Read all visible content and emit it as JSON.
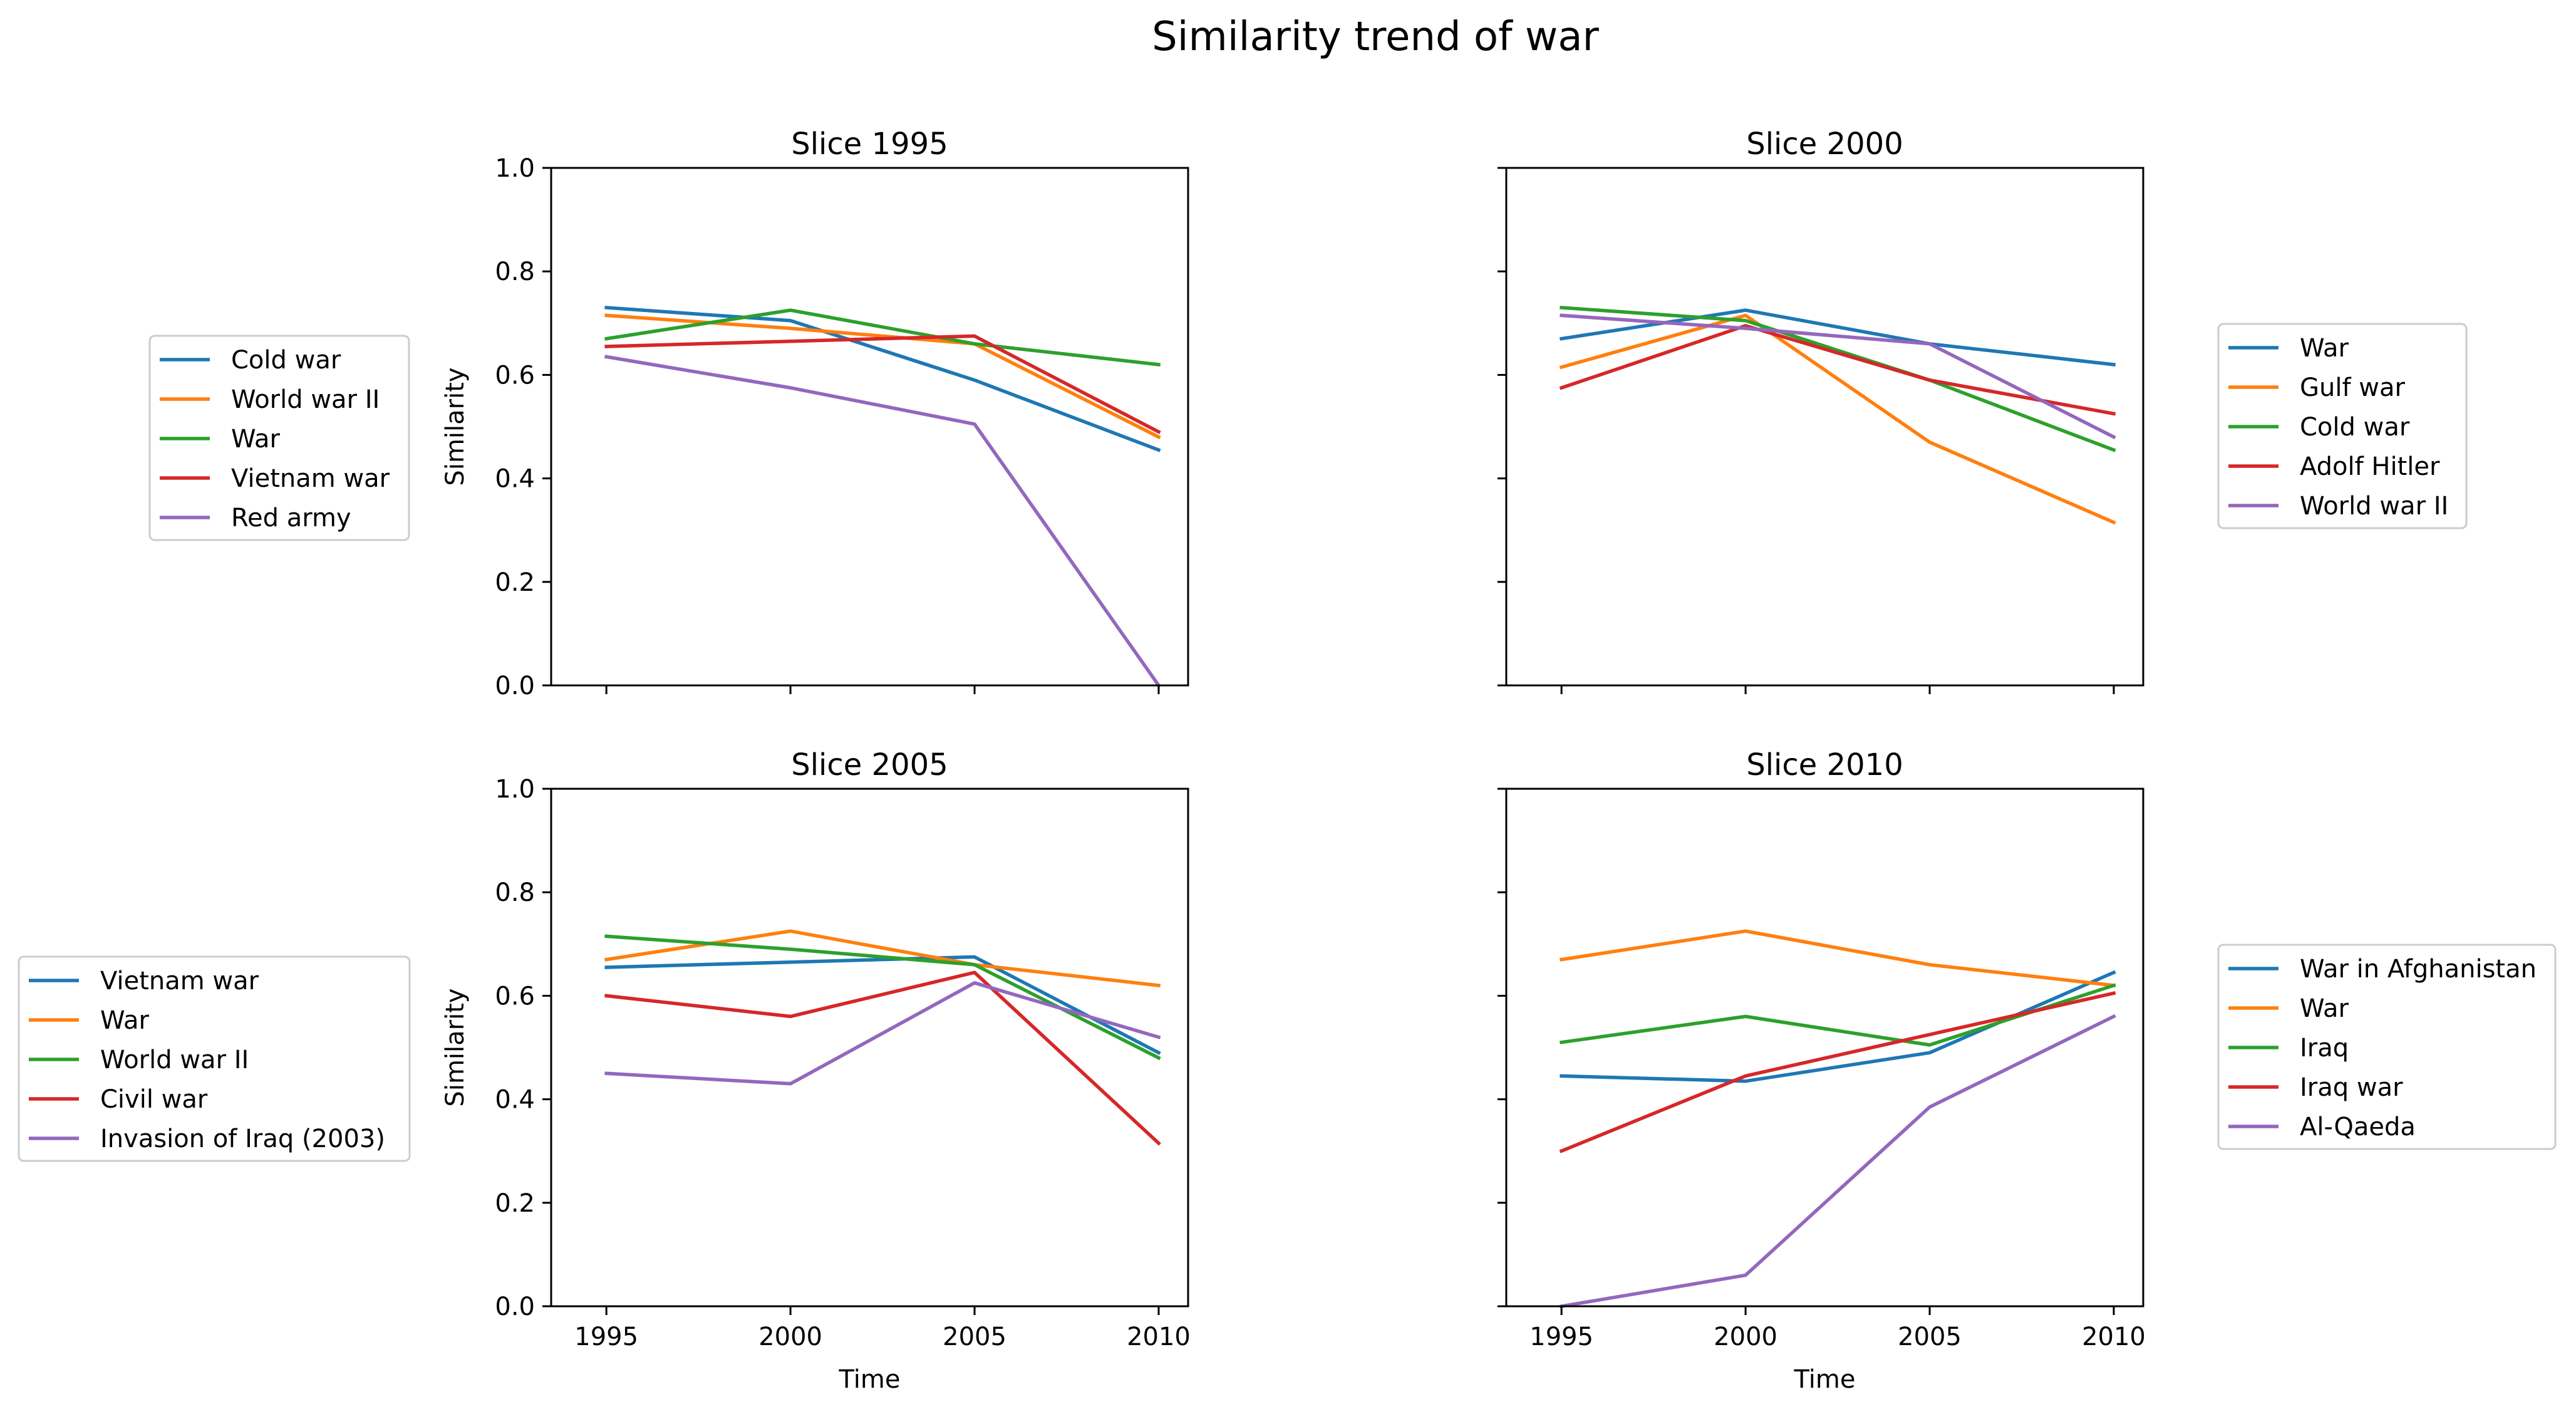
{
  "figure": {
    "title": "Similarity trend of war"
  },
  "chart_data": [
    {
      "type": "line",
      "title": "Slice 1995",
      "xlabel": "",
      "ylabel": "Similarity",
      "x": [
        1995,
        2000,
        2005,
        2010
      ],
      "xticks": [
        "1995",
        "2000",
        "2005",
        "2010"
      ],
      "show_xtick_labels": false,
      "show_ytick_labels": true,
      "ylim": [
        0,
        1
      ],
      "yticks": [
        "0.0",
        "0.2",
        "0.4",
        "0.6",
        "0.8",
        "1.0"
      ],
      "grid": false,
      "legend": "left",
      "series": [
        {
          "name": "Cold war",
          "color": "#1f77b4",
          "values": [
            0.73,
            0.705,
            0.59,
            0.455
          ]
        },
        {
          "name": "World war II",
          "color": "#ff7f0e",
          "values": [
            0.715,
            0.69,
            0.66,
            0.48
          ]
        },
        {
          "name": "War",
          "color": "#2ca02c",
          "values": [
            0.67,
            0.725,
            0.66,
            0.62
          ]
        },
        {
          "name": "Vietnam war",
          "color": "#d62728",
          "values": [
            0.655,
            0.665,
            0.675,
            0.49
          ]
        },
        {
          "name": "Red army",
          "color": "#9467bd",
          "values": [
            0.635,
            0.575,
            0.505,
            0.0
          ]
        }
      ]
    },
    {
      "type": "line",
      "title": "Slice 2000",
      "xlabel": "",
      "ylabel": "",
      "x": [
        1995,
        2000,
        2005,
        2010
      ],
      "xticks": [
        "1995",
        "2000",
        "2005",
        "2010"
      ],
      "show_xtick_labels": false,
      "show_ytick_labels": false,
      "ylim": [
        0,
        1
      ],
      "yticks": [
        "0.0",
        "0.2",
        "0.4",
        "0.6",
        "0.8",
        "1.0"
      ],
      "grid": false,
      "legend": "right",
      "series": [
        {
          "name": "War",
          "color": "#1f77b4",
          "values": [
            0.67,
            0.725,
            0.66,
            0.62
          ]
        },
        {
          "name": "Gulf war",
          "color": "#ff7f0e",
          "values": [
            0.615,
            0.715,
            0.47,
            0.315
          ]
        },
        {
          "name": "Cold war",
          "color": "#2ca02c",
          "values": [
            0.73,
            0.705,
            0.59,
            0.455
          ]
        },
        {
          "name": "Adolf Hitler",
          "color": "#d62728",
          "values": [
            0.575,
            0.695,
            0.59,
            0.525
          ]
        },
        {
          "name": "World war II",
          "color": "#9467bd",
          "values": [
            0.715,
            0.69,
            0.66,
            0.48
          ]
        }
      ]
    },
    {
      "type": "line",
      "title": "Slice 2005",
      "xlabel": "Time",
      "ylabel": "Similarity",
      "x": [
        1995,
        2000,
        2005,
        2010
      ],
      "xticks": [
        "1995",
        "2000",
        "2005",
        "2010"
      ],
      "show_xtick_labels": true,
      "show_ytick_labels": true,
      "ylim": [
        0,
        1
      ],
      "yticks": [
        "0.0",
        "0.2",
        "0.4",
        "0.6",
        "0.8",
        "1.0"
      ],
      "grid": false,
      "legend": "left",
      "series": [
        {
          "name": "Vietnam war",
          "color": "#1f77b4",
          "values": [
            0.655,
            0.665,
            0.675,
            0.49
          ]
        },
        {
          "name": "War",
          "color": "#ff7f0e",
          "values": [
            0.67,
            0.725,
            0.66,
            0.62
          ]
        },
        {
          "name": "World war II",
          "color": "#2ca02c",
          "values": [
            0.715,
            0.69,
            0.66,
            0.48
          ]
        },
        {
          "name": "Civil war",
          "color": "#d62728",
          "values": [
            0.6,
            0.56,
            0.645,
            0.315
          ]
        },
        {
          "name": "Invasion of Iraq (2003)",
          "color": "#9467bd",
          "values": [
            0.45,
            0.43,
            0.625,
            0.52
          ]
        }
      ]
    },
    {
      "type": "line",
      "title": "Slice 2010",
      "xlabel": "Time",
      "ylabel": "",
      "x": [
        1995,
        2000,
        2005,
        2010
      ],
      "xticks": [
        "1995",
        "2000",
        "2005",
        "2010"
      ],
      "show_xtick_labels": true,
      "show_ytick_labels": false,
      "ylim": [
        0,
        1
      ],
      "yticks": [
        "0.0",
        "0.2",
        "0.4",
        "0.6",
        "0.8",
        "1.0"
      ],
      "grid": false,
      "legend": "right",
      "series": [
        {
          "name": "War in Afghanistan",
          "color": "#1f77b4",
          "values": [
            0.445,
            0.435,
            0.49,
            0.645
          ]
        },
        {
          "name": "War",
          "color": "#ff7f0e",
          "values": [
            0.67,
            0.725,
            0.66,
            0.62
          ]
        },
        {
          "name": "Iraq",
          "color": "#2ca02c",
          "values": [
            0.51,
            0.56,
            0.505,
            0.62
          ]
        },
        {
          "name": "Iraq war",
          "color": "#d62728",
          "values": [
            0.3,
            0.445,
            0.525,
            0.605
          ]
        },
        {
          "name": "Al-Qaeda",
          "color": "#9467bd",
          "values": [
            0.0,
            0.06,
            0.385,
            0.56
          ]
        }
      ]
    }
  ]
}
